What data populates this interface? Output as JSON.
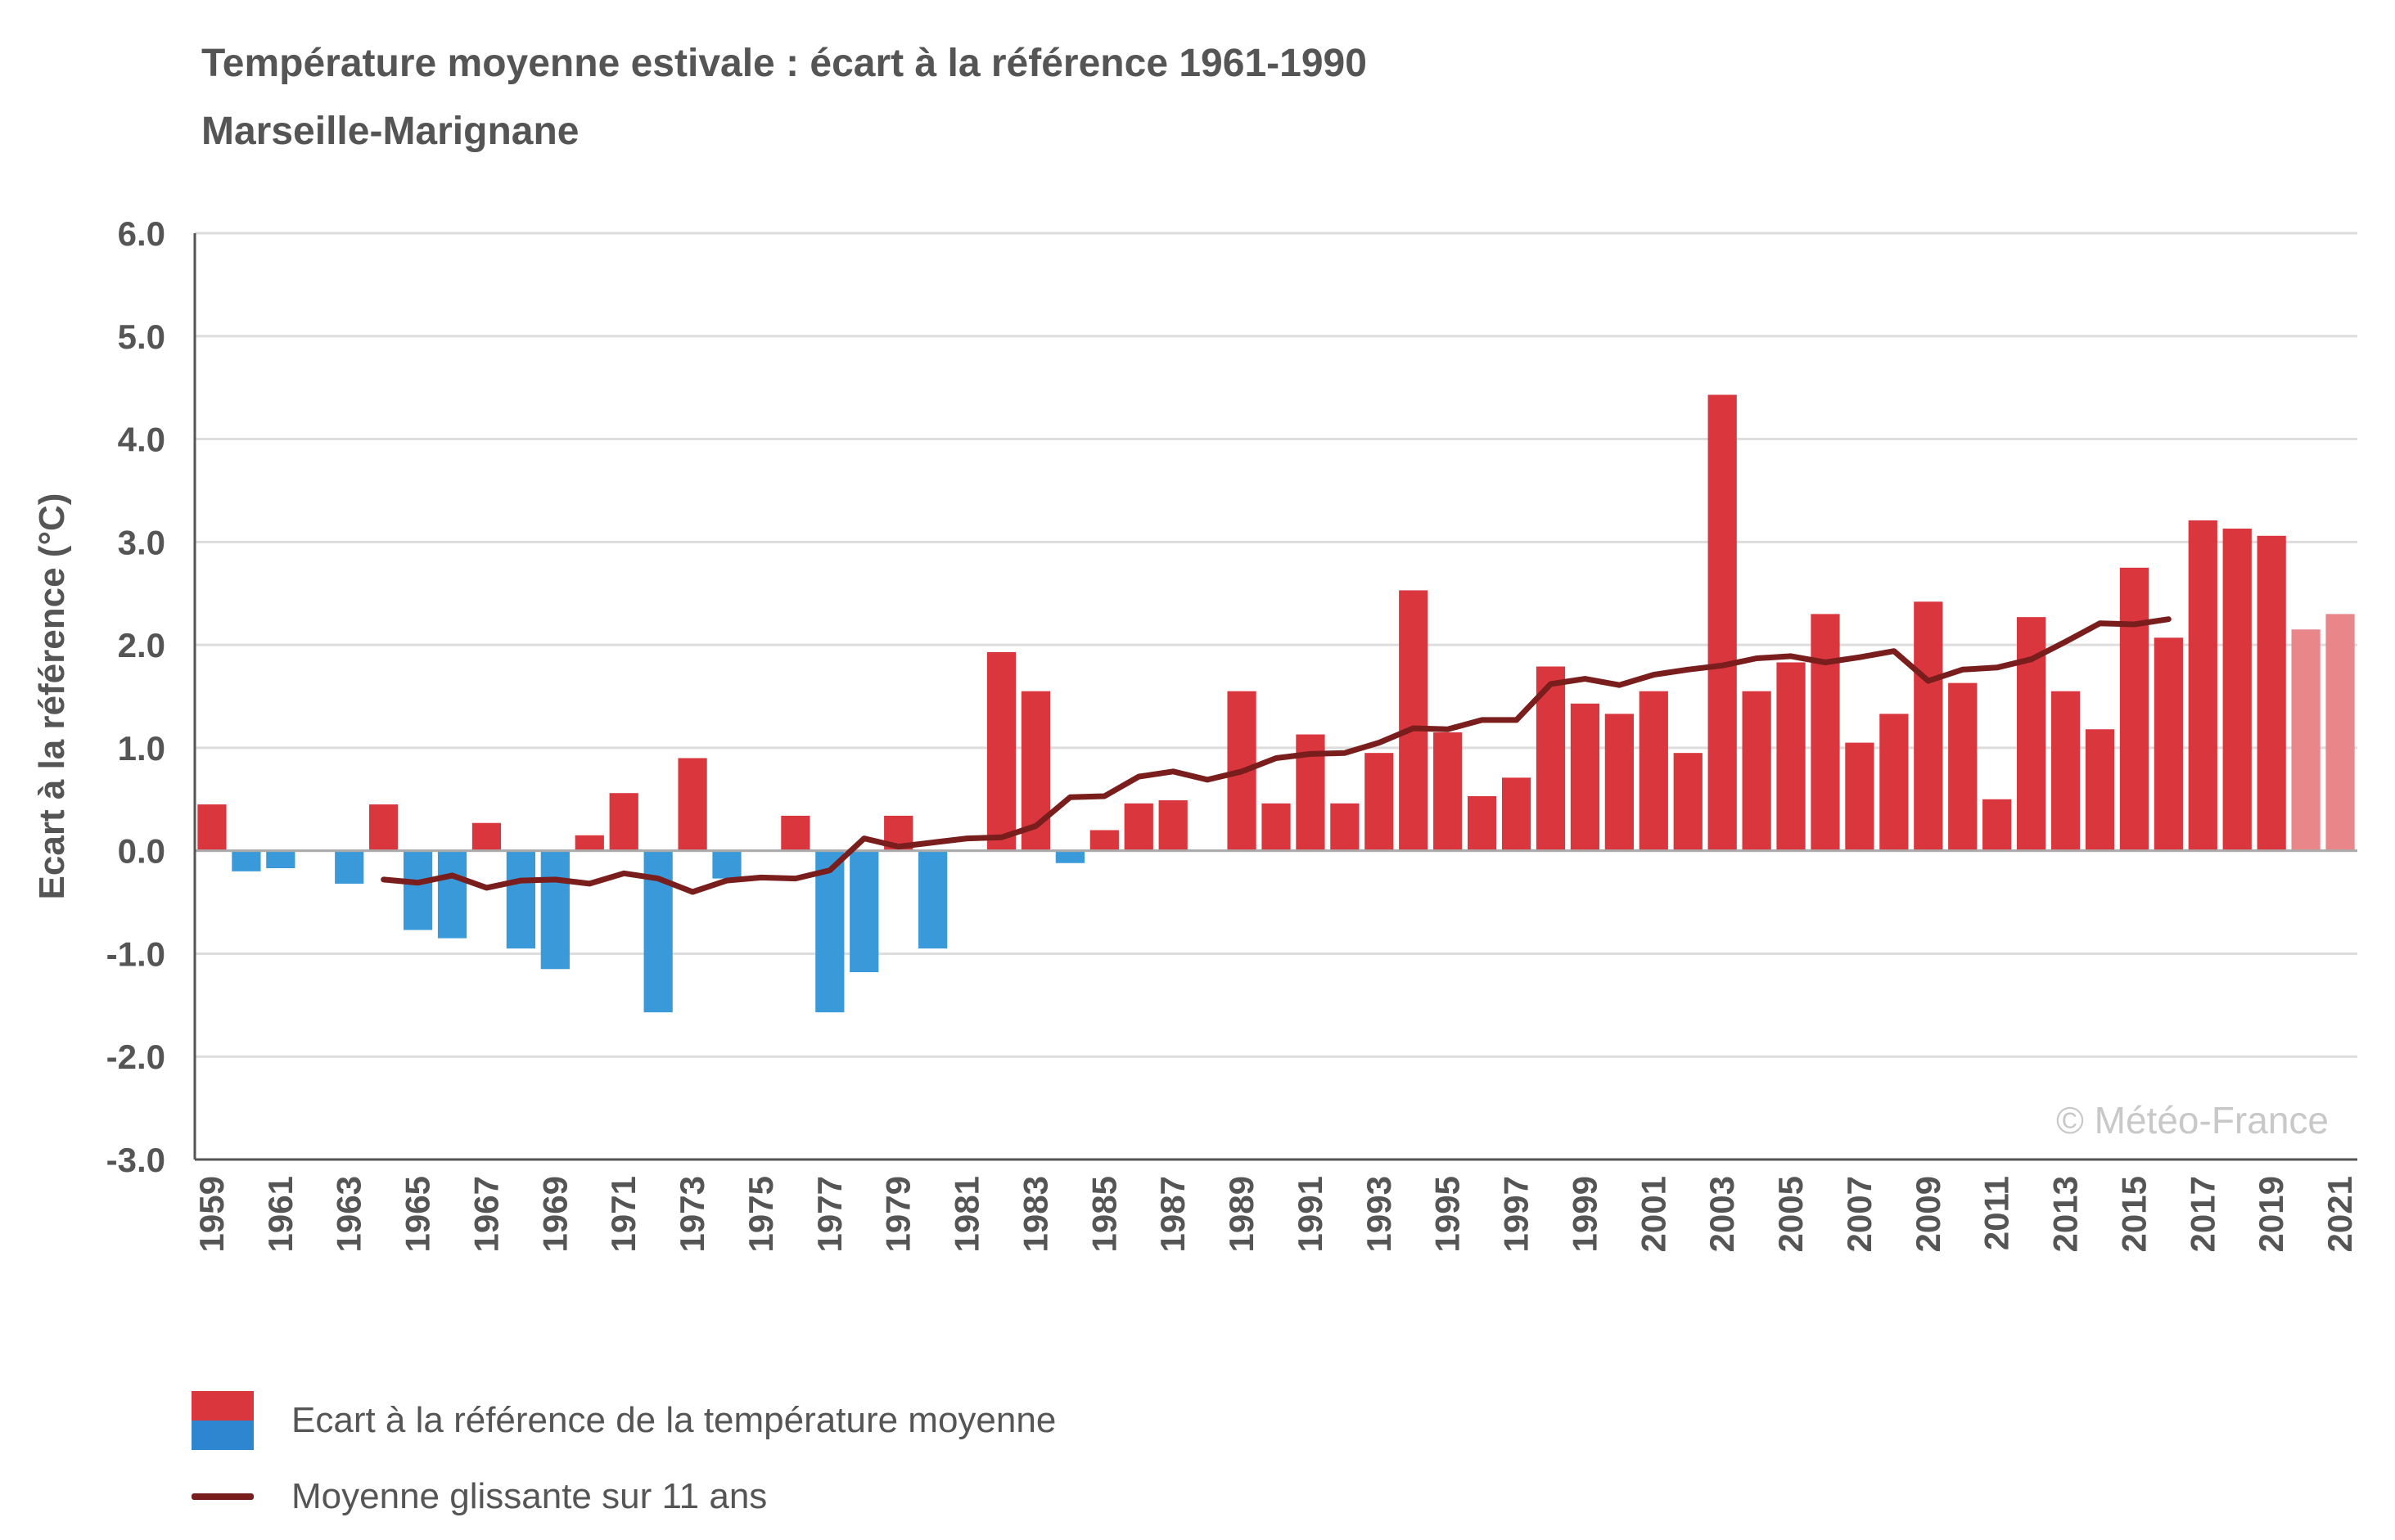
{
  "chart_data": {
    "type": "bar",
    "title": "Température moyenne estivale : écart à la référence 1961-1990",
    "subtitle": "Marseille-Marignane",
    "ylabel": "Ecart à la référence (°C)",
    "ylim": [
      -3.0,
      6.0
    ],
    "yticks": [
      "6.0",
      "5.0",
      "4.0",
      "3.0",
      "2.0",
      "1.0",
      "0.0",
      "-1.0",
      "-2.0",
      "-3.0"
    ],
    "grid": true,
    "watermark": "© Météo-France",
    "categories": [
      "1959",
      "1960",
      "1961",
      "1962",
      "1963",
      "1964",
      "1965",
      "1966",
      "1967",
      "1968",
      "1969",
      "1970",
      "1971",
      "1972",
      "1973",
      "1974",
      "1975",
      "1976",
      "1977",
      "1978",
      "1979",
      "1980",
      "1981",
      "1982",
      "1983",
      "1984",
      "1985",
      "1986",
      "1987",
      "1988",
      "1989",
      "1990",
      "1991",
      "1992",
      "1993",
      "1994",
      "1995",
      "1996",
      "1997",
      "1998",
      "1999",
      "2000",
      "2001",
      "2002",
      "2003",
      "2004",
      "2005",
      "2006",
      "2007",
      "2008",
      "2009",
      "2010",
      "2011",
      "2012",
      "2013",
      "2014",
      "2015",
      "2016",
      "2017",
      "2018",
      "2019",
      "2020",
      "2021"
    ],
    "x_tick_labels": [
      "1959",
      "1961",
      "1963",
      "1965",
      "1967",
      "1969",
      "1971",
      "1973",
      "1975",
      "1977",
      "1979",
      "1981",
      "1983",
      "1985",
      "1987",
      "1989",
      "1991",
      "1993",
      "1995",
      "1997",
      "1999",
      "2001",
      "2003",
      "2005",
      "2007",
      "2009",
      "2011",
      "2013",
      "2015",
      "2017",
      "2019",
      "2021"
    ],
    "series": [
      {
        "name": "Ecart à la référence de la température moyenne",
        "values": [
          0.45,
          -0.2,
          -0.17,
          0.0,
          -0.32,
          0.45,
          -0.77,
          -0.85,
          0.27,
          -0.95,
          -1.15,
          0.15,
          0.56,
          -1.57,
          0.9,
          -0.27,
          0.0,
          0.34,
          -1.57,
          -1.18,
          0.34,
          -0.95,
          0.0,
          1.93,
          1.55,
          -0.12,
          0.2,
          0.46,
          0.49,
          0.0,
          1.55,
          0.46,
          1.13,
          0.46,
          0.95,
          2.53,
          1.15,
          0.53,
          0.71,
          1.79,
          1.43,
          1.33,
          1.55,
          0.95,
          4.43,
          1.55,
          1.83,
          2.3,
          1.05,
          1.33,
          2.42,
          1.63,
          0.5,
          2.27,
          1.55,
          1.18,
          2.75,
          2.07,
          3.21,
          3.13,
          3.06,
          2.15,
          2.3
        ]
      },
      {
        "name": "Moyenne glissante sur 11 ans",
        "x": [
          1964,
          1965,
          1966,
          1967,
          1968,
          1969,
          1970,
          1971,
          1972,
          1973,
          1974,
          1975,
          1976,
          1977,
          1978,
          1979,
          1980,
          1981,
          1982,
          1983,
          1984,
          1985,
          1986,
          1987,
          1988,
          1989,
          1990,
          1991,
          1992,
          1993,
          1994,
          1995,
          1996,
          1997,
          1998,
          1999,
          2000,
          2001,
          2002,
          2003,
          2004,
          2005,
          2006,
          2007,
          2008,
          2009,
          2010,
          2011,
          2012,
          2013,
          2014,
          2015,
          2016
        ],
        "values": [
          -0.28,
          -0.31,
          -0.24,
          -0.36,
          -0.29,
          -0.28,
          -0.32,
          -0.22,
          -0.27,
          -0.4,
          -0.29,
          -0.26,
          -0.27,
          -0.19,
          0.12,
          0.04,
          0.08,
          0.12,
          0.13,
          0.24,
          0.52,
          0.53,
          0.72,
          0.77,
          0.69,
          0.77,
          0.9,
          0.94,
          0.95,
          1.05,
          1.19,
          1.18,
          1.27,
          1.27,
          1.62,
          1.67,
          1.61,
          1.71,
          1.76,
          1.8,
          1.87,
          1.89,
          1.83,
          1.88,
          1.94,
          1.65,
          1.76,
          1.78,
          1.86,
          2.03,
          2.21,
          2.2,
          2.25
        ]
      }
    ],
    "colors": {
      "positive": "#d9363e",
      "negative": "#3a9ad9",
      "provisional": "#e8868a",
      "line": "#7a1d1d",
      "grid": "#dddddd"
    },
    "legend": {
      "position": "bottom-left",
      "items": [
        "Ecart à la référence de la température moyenne",
        "Moyenne glissante sur 11 ans"
      ]
    }
  }
}
